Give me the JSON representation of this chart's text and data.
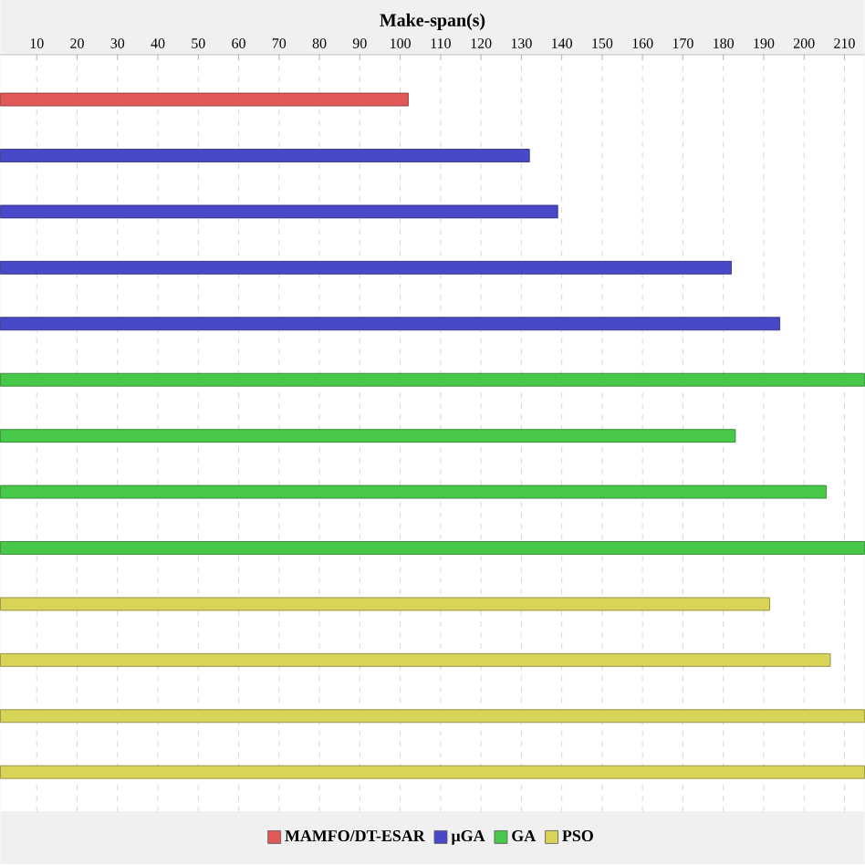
{
  "chart_data": {
    "type": "bar",
    "orientation": "horizontal",
    "xlabel": "Make-span(s)",
    "categories": [
      null,
      null,
      null,
      null,
      null,
      null,
      null,
      null,
      null,
      null,
      null,
      null,
      null
    ],
    "series": [
      {
        "name": "MAMFO/DT-ESAR",
        "color": "#e05858",
        "values": [
          102,
          null,
          null,
          null,
          null,
          null,
          null,
          null,
          null,
          null,
          null,
          null,
          null
        ]
      },
      {
        "name": "µGA",
        "color": "#4848c8",
        "values": [
          null,
          132,
          139,
          182,
          194,
          null,
          null,
          null,
          null,
          null,
          null,
          null,
          null
        ]
      },
      {
        "name": "GA",
        "color": "#48c848",
        "values": [
          null,
          null,
          null,
          null,
          null,
          215,
          183,
          205.5,
          215,
          null,
          null,
          null,
          null
        ]
      },
      {
        "name": "PSO",
        "color": "#d8d458",
        "values": [
          null,
          null,
          null,
          null,
          null,
          null,
          null,
          null,
          null,
          191.5,
          206.5,
          215,
          215
        ]
      }
    ],
    "xlim": [
      1,
      215
    ],
    "xticks": [
      10,
      20,
      30,
      40,
      50,
      60,
      70,
      80,
      90,
      100,
      110,
      120,
      130,
      140,
      150,
      160,
      170,
      180,
      190,
      200,
      210
    ],
    "grid": "x",
    "legend": "bottom",
    "tick_labels": "x"
  }
}
